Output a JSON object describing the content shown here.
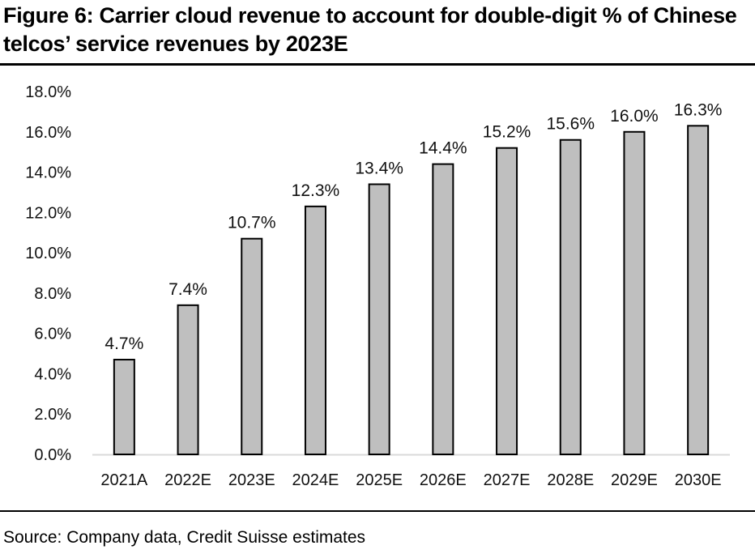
{
  "figure": {
    "title": "Figure 6: Carrier cloud revenue to account for double-digit % of Chinese telcos’ service revenues by 2023E",
    "source": "Source: Company data, Credit Suisse estimates"
  },
  "colors": {
    "bar_fill": "#bfbfbf",
    "bar_stroke": "#000000",
    "axis": "#d9d9d9"
  },
  "chart_data": {
    "type": "bar",
    "title": "Figure 6: Carrier cloud revenue to account for double-digit % of Chinese telcos’ service revenues by 2023E",
    "xlabel": "",
    "ylabel": "",
    "categories": [
      "2021A",
      "2022E",
      "2023E",
      "2024E",
      "2025E",
      "2026E",
      "2027E",
      "2028E",
      "2029E",
      "2030E"
    ],
    "values": [
      4.7,
      7.4,
      10.7,
      12.3,
      13.4,
      14.4,
      15.2,
      15.6,
      16.0,
      16.3
    ],
    "value_labels": [
      "4.7%",
      "7.4%",
      "10.7%",
      "12.3%",
      "13.4%",
      "14.4%",
      "15.2%",
      "15.6%",
      "16.0%",
      "16.3%"
    ],
    "ylim": [
      0,
      18
    ],
    "yticks": [
      0,
      2,
      4,
      6,
      8,
      10,
      12,
      14,
      16,
      18
    ],
    "ytick_labels": [
      "0.0%",
      "2.0%",
      "4.0%",
      "6.0%",
      "8.0%",
      "10.0%",
      "12.0%",
      "14.0%",
      "16.0%",
      "18.0%"
    ],
    "grid": false,
    "legend": "none"
  }
}
